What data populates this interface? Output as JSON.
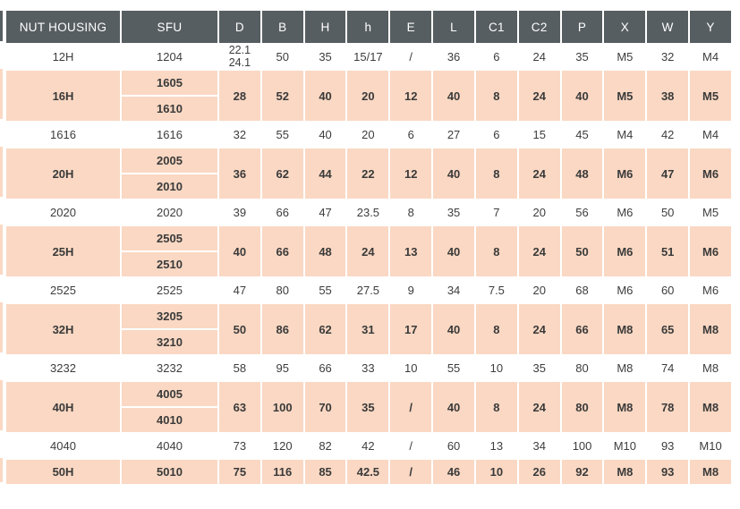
{
  "colors": {
    "header_bg": "#575e61",
    "header_text": "#ffffff",
    "row_shade_bg": "#fad8c3",
    "row_plain_bg": "#ffffff",
    "body_text": "#3d3d3d"
  },
  "table": {
    "columns": [
      "NUT HOUSING",
      "SFU",
      "D",
      "B",
      "H",
      "h",
      "E",
      "L",
      "C1",
      "C2",
      "P",
      "X",
      "W",
      "Y"
    ],
    "rows": [
      {
        "nut_housing": "12H",
        "sfu": [
          "1204"
        ],
        "shaded": false,
        "values": [
          "22.1\n24.1",
          "50",
          "35",
          "15/17",
          "/",
          "36",
          "6",
          "24",
          "35",
          "M5",
          "32",
          "M4"
        ]
      },
      {
        "nut_housing": "16H",
        "sfu": [
          "1605",
          "1610"
        ],
        "shaded": true,
        "values": [
          "28",
          "52",
          "40",
          "20",
          "12",
          "40",
          "8",
          "24",
          "40",
          "M5",
          "38",
          "M5"
        ]
      },
      {
        "nut_housing": "1616",
        "sfu": [
          "1616"
        ],
        "shaded": false,
        "values": [
          "32",
          "55",
          "40",
          "20",
          "6",
          "27",
          "6",
          "15",
          "45",
          "M4",
          "42",
          "M4"
        ]
      },
      {
        "nut_housing": "20H",
        "sfu": [
          "2005",
          "2010"
        ],
        "shaded": true,
        "values": [
          "36",
          "62",
          "44",
          "22",
          "12",
          "40",
          "8",
          "24",
          "48",
          "M6",
          "47",
          "M6"
        ]
      },
      {
        "nut_housing": "2020",
        "sfu": [
          "2020"
        ],
        "shaded": false,
        "values": [
          "39",
          "66",
          "47",
          "23.5",
          "8",
          "35",
          "7",
          "20",
          "56",
          "M6",
          "50",
          "M5"
        ]
      },
      {
        "nut_housing": "25H",
        "sfu": [
          "2505",
          "2510"
        ],
        "shaded": true,
        "values": [
          "40",
          "66",
          "48",
          "24",
          "13",
          "40",
          "8",
          "24",
          "50",
          "M6",
          "51",
          "M6"
        ]
      },
      {
        "nut_housing": "2525",
        "sfu": [
          "2525"
        ],
        "shaded": false,
        "values": [
          "47",
          "80",
          "55",
          "27.5",
          "9",
          "34",
          "7.5",
          "20",
          "68",
          "M6",
          "60",
          "M6"
        ]
      },
      {
        "nut_housing": "32H",
        "sfu": [
          "3205",
          "3210"
        ],
        "shaded": true,
        "values": [
          "50",
          "86",
          "62",
          "31",
          "17",
          "40",
          "8",
          "24",
          "66",
          "M8",
          "65",
          "M8"
        ]
      },
      {
        "nut_housing": "3232",
        "sfu": [
          "3232"
        ],
        "shaded": false,
        "values": [
          "58",
          "95",
          "66",
          "33",
          "10",
          "55",
          "10",
          "35",
          "80",
          "M8",
          "74",
          "M8"
        ]
      },
      {
        "nut_housing": "40H",
        "sfu": [
          "4005",
          "4010"
        ],
        "shaded": true,
        "values": [
          "63",
          "100",
          "70",
          "35",
          "/",
          "40",
          "8",
          "24",
          "80",
          "M8",
          "78",
          "M8"
        ]
      },
      {
        "nut_housing": "4040",
        "sfu": [
          "4040"
        ],
        "shaded": false,
        "values": [
          "73",
          "120",
          "82",
          "42",
          "/",
          "60",
          "13",
          "34",
          "100",
          "M10",
          "93",
          "M10"
        ]
      },
      {
        "nut_housing": "50H",
        "sfu": [
          "5010"
        ],
        "shaded": true,
        "values": [
          "75",
          "116",
          "85",
          "42.5",
          "/",
          "46",
          "10",
          "26",
          "92",
          "M8",
          "93",
          "M8"
        ]
      }
    ]
  },
  "chart_data": {
    "type": "table",
    "title": "Nut housing dimensions by SFU ball screw size",
    "columns": [
      "NUT HOUSING",
      "SFU",
      "D",
      "B",
      "H",
      "h",
      "E",
      "L",
      "C1",
      "C2",
      "P",
      "X",
      "W",
      "Y"
    ],
    "rows": [
      [
        "12H",
        "1204",
        "22.1/24.1",
        "50",
        "35",
        "15/17",
        "/",
        "36",
        "6",
        "24",
        "35",
        "M5",
        "32",
        "M4"
      ],
      [
        "16H",
        "1605",
        "28",
        "52",
        "40",
        "20",
        "12",
        "40",
        "8",
        "24",
        "40",
        "M5",
        "38",
        "M5"
      ],
      [
        "16H",
        "1610",
        "28",
        "52",
        "40",
        "20",
        "12",
        "40",
        "8",
        "24",
        "40",
        "M5",
        "38",
        "M5"
      ],
      [
        "1616",
        "1616",
        "32",
        "55",
        "40",
        "20",
        "6",
        "27",
        "6",
        "15",
        "45",
        "M4",
        "42",
        "M4"
      ],
      [
        "20H",
        "2005",
        "36",
        "62",
        "44",
        "22",
        "12",
        "40",
        "8",
        "24",
        "48",
        "M6",
        "47",
        "M6"
      ],
      [
        "20H",
        "2010",
        "36",
        "62",
        "44",
        "22",
        "12",
        "40",
        "8",
        "24",
        "48",
        "M6",
        "47",
        "M6"
      ],
      [
        "2020",
        "2020",
        "39",
        "66",
        "47",
        "23.5",
        "8",
        "35",
        "7",
        "20",
        "56",
        "M6",
        "50",
        "M5"
      ],
      [
        "25H",
        "2505",
        "40",
        "66",
        "48",
        "24",
        "13",
        "40",
        "8",
        "24",
        "50",
        "M6",
        "51",
        "M6"
      ],
      [
        "25H",
        "2510",
        "40",
        "66",
        "48",
        "24",
        "13",
        "40",
        "8",
        "24",
        "50",
        "M6",
        "51",
        "M6"
      ],
      [
        "2525",
        "2525",
        "47",
        "80",
        "55",
        "27.5",
        "9",
        "34",
        "7.5",
        "20",
        "68",
        "M6",
        "60",
        "M6"
      ],
      [
        "32H",
        "3205",
        "50",
        "86",
        "62",
        "31",
        "17",
        "40",
        "8",
        "24",
        "66",
        "M8",
        "65",
        "M8"
      ],
      [
        "32H",
        "3210",
        "50",
        "86",
        "62",
        "31",
        "17",
        "40",
        "8",
        "24",
        "66",
        "M8",
        "65",
        "M8"
      ],
      [
        "3232",
        "3232",
        "58",
        "95",
        "66",
        "33",
        "10",
        "55",
        "10",
        "35",
        "80",
        "M8",
        "74",
        "M8"
      ],
      [
        "40H",
        "4005",
        "63",
        "100",
        "70",
        "35",
        "/",
        "40",
        "8",
        "24",
        "80",
        "M8",
        "78",
        "M8"
      ],
      [
        "40H",
        "4010",
        "63",
        "100",
        "70",
        "35",
        "/",
        "40",
        "8",
        "24",
        "80",
        "M8",
        "78",
        "M8"
      ],
      [
        "4040",
        "4040",
        "73",
        "120",
        "82",
        "42",
        "/",
        "60",
        "13",
        "34",
        "100",
        "M10",
        "93",
        "M10"
      ],
      [
        "50H",
        "5010",
        "75",
        "116",
        "85",
        "42.5",
        "/",
        "46",
        "10",
        "26",
        "92",
        "M8",
        "93",
        "M8"
      ]
    ]
  }
}
